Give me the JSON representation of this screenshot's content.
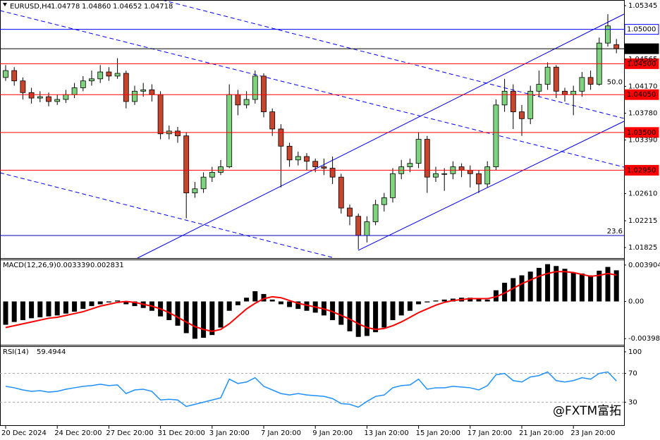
{
  "chart_data": [
    {
      "type": "candlestick",
      "title": "EURUSD,H4",
      "last_labels": [
        "1.04778",
        "1.04860",
        "1.04652",
        "1.04718"
      ],
      "up_color": "#7fd37f",
      "down_color": "#c8442c",
      "grid": false,
      "ylim": [
        1.01672,
        1.05427
      ],
      "yticks": [
        1.05345,
        1.04565,
        {
          "value": 1.0417,
          "label": "1.04170"
        },
        {
          "value": 1.0378,
          "label": "1.03780"
        },
        {
          "value": 1.0339,
          "label": "1.03390"
        },
        {
          "value": 1.0261,
          "label": "1.02610"
        },
        1.02215,
        1.01825
      ],
      "levels": [
        {
          "value": 1.05,
          "label": "1.05000",
          "color": "#0000ff",
          "box": "outline"
        },
        {
          "value": 1.04718,
          "label": "1.04718",
          "color": "#000000",
          "box": "filled"
        },
        {
          "value": 1.045,
          "label": "1.04500",
          "color": "#ff0000",
          "box": "filled"
        },
        {
          "value": 1.0405,
          "label": "1.04050",
          "color": "#ff0000",
          "box": "filled"
        },
        {
          "value": 1.035,
          "label": "1.03500",
          "color": "#ff0000",
          "box": "filled"
        },
        {
          "value": 1.0295,
          "label": "1.02950",
          "color": "#ff0000",
          "box": "filled"
        }
      ],
      "fib_levels": [
        {
          "value": 1.0417,
          "label": "50.0"
        },
        {
          "value": 1.02,
          "label": "23.6",
          "color": "#0000c0"
        }
      ],
      "categories": [
        "20 Dec 2024",
        null,
        null,
        null,
        null,
        null,
        "24 Dec 20:00",
        null,
        null,
        null,
        null,
        null,
        "27 Dec 20:00",
        null,
        null,
        null,
        null,
        null,
        "31 Dec 20:00",
        null,
        null,
        null,
        null,
        null,
        "3 Jan 20:00",
        null,
        null,
        null,
        null,
        null,
        "7 Jan 20:00",
        null,
        null,
        null,
        null,
        null,
        "9 Jan 20:00",
        null,
        null,
        null,
        null,
        null,
        "13 Jan 20:00",
        null,
        null,
        null,
        null,
        null,
        "15 Jan 20:00",
        null,
        null,
        null,
        null,
        null,
        "17 Jan 20:00",
        null,
        null,
        null,
        null,
        null,
        "21 Jan 20:00",
        null,
        null,
        null,
        null,
        null,
        "23 Jan 20:00",
        null,
        null,
        null,
        null,
        null
      ],
      "open": [
        1.043,
        1.044,
        1.0425,
        1.0408,
        1.04,
        1.0402,
        1.0395,
        1.0398,
        1.0405,
        1.0415,
        1.0425,
        1.0428,
        1.0438,
        1.0432,
        1.0436,
        1.0395,
        1.041,
        1.0412,
        1.0405,
        1.0348,
        1.0352,
        1.0345,
        1.0262,
        1.0268,
        1.0285,
        1.0292,
        1.03,
        1.0405,
        1.039,
        1.0398,
        1.0432,
        1.038,
        1.0355,
        1.033,
        1.031,
        1.0315,
        1.0308,
        1.03,
        1.0298,
        1.0285,
        1.024,
        1.0228,
        1.02,
        1.022,
        1.0245,
        1.0255,
        1.029,
        1.03,
        1.0305,
        1.034,
        1.0285,
        1.029,
        1.029,
        1.03,
        1.0295,
        1.029,
        1.0275,
        1.03,
        1.039,
        1.041,
        1.038,
        1.037,
        1.041,
        1.042,
        1.0445,
        1.041,
        1.0405,
        1.041,
        1.043,
        1.042,
        1.048,
        1.04778
      ],
      "high": [
        1.0448,
        1.0445,
        1.043,
        1.0415,
        1.041,
        1.0408,
        1.0405,
        1.0412,
        1.0422,
        1.0432,
        1.044,
        1.0448,
        1.0445,
        1.0458,
        1.044,
        1.0418,
        1.0422,
        1.042,
        1.041,
        1.036,
        1.0358,
        1.035,
        1.0278,
        1.0292,
        1.03,
        1.031,
        1.042,
        1.0412,
        1.041,
        1.044,
        1.0436,
        1.0385,
        1.0362,
        1.0335,
        1.0322,
        1.032,
        1.0312,
        1.0312,
        1.0315,
        1.029,
        1.0245,
        1.0232,
        1.0228,
        1.0252,
        1.0262,
        1.0298,
        1.031,
        1.0312,
        1.035,
        1.0345,
        1.03,
        1.0298,
        1.0308,
        1.0305,
        1.0302,
        1.0295,
        1.0308,
        1.0398,
        1.0428,
        1.042,
        1.039,
        1.0418,
        1.044,
        1.0452,
        1.0448,
        1.0415,
        1.0418,
        1.0438,
        1.044,
        1.0488,
        1.0522,
        1.0486
      ],
      "low": [
        1.0425,
        1.0418,
        1.0398,
        1.0392,
        1.0394,
        1.0388,
        1.039,
        1.0393,
        1.04,
        1.041,
        1.0418,
        1.0422,
        1.0425,
        1.0428,
        1.0385,
        1.039,
        1.0402,
        1.0395,
        1.034,
        1.034,
        1.0335,
        1.0225,
        1.0255,
        1.0262,
        1.0278,
        1.0288,
        1.0298,
        1.0375,
        1.0385,
        1.0392,
        1.0372,
        1.0345,
        1.027,
        1.03,
        1.0302,
        1.0295,
        1.0292,
        1.0288,
        1.0275,
        1.0232,
        1.0215,
        1.018,
        1.019,
        1.0215,
        1.0235,
        1.0248,
        1.0282,
        1.0292,
        1.0298,
        1.0262,
        1.0278,
        1.0265,
        1.0282,
        1.0285,
        1.027,
        1.0262,
        1.027,
        1.0295,
        1.038,
        1.0355,
        1.0345,
        1.0362,
        1.0402,
        1.0412,
        1.04,
        1.0395,
        1.0375,
        1.0402,
        1.0412,
        1.0418,
        1.0475,
        1.04652
      ],
      "close": [
        1.044,
        1.0425,
        1.0408,
        1.04,
        1.0402,
        1.0395,
        1.0398,
        1.0405,
        1.0415,
        1.0425,
        1.0428,
        1.0438,
        1.0432,
        1.0436,
        1.0395,
        1.041,
        1.0412,
        1.0405,
        1.0348,
        1.0352,
        1.0345,
        1.0262,
        1.0268,
        1.0285,
        1.0292,
        1.03,
        1.0405,
        1.039,
        1.0398,
        1.0432,
        1.038,
        1.0355,
        1.033,
        1.031,
        1.0315,
        1.0308,
        1.03,
        1.0298,
        1.0285,
        1.024,
        1.0228,
        1.02,
        1.022,
        1.0245,
        1.0255,
        1.029,
        1.03,
        1.0305,
        1.034,
        1.0285,
        1.029,
        1.029,
        1.03,
        1.0295,
        1.029,
        1.0275,
        1.03,
        1.039,
        1.041,
        1.038,
        1.037,
        1.041,
        1.042,
        1.0445,
        1.041,
        1.0405,
        1.041,
        1.043,
        1.042,
        1.048,
        1.0505,
        1.04718
      ],
      "watermark": "@FXTM富拓"
    },
    {
      "type": "combo",
      "title": "MACD(12,26,9)",
      "ylim": [
        -0.00465,
        0.004425
      ],
      "yticks": [
        0.003904,
        {
          "value": 0,
          "label": "0.00"
        },
        -0.003981
      ],
      "series": [
        {
          "kind": "bar",
          "color": "#000000",
          "values": [
            -0.0025,
            -0.0022,
            -0.002,
            -0.0018,
            -0.0017,
            -0.0016,
            -0.0015,
            -0.0013,
            -0.0011,
            -0.0008,
            -0.0005,
            -0.0003,
            -0.0001,
            0.0001,
            -0.0003,
            -0.0005,
            -0.0007,
            -0.001,
            -0.0016,
            -0.002,
            -0.0026,
            -0.0034,
            -0.004,
            -0.0039,
            -0.0036,
            -0.0028,
            -0.001,
            -0.0004,
            0.0004,
            0.0011,
            0.0008,
            0.0002,
            -0.0003,
            -0.0006,
            -0.0008,
            -0.001,
            -0.0012,
            -0.0015,
            -0.002,
            -0.0025,
            -0.0032,
            -0.0038,
            -0.0037,
            -0.0033,
            -0.0028,
            -0.002,
            -0.0015,
            -0.001,
            -0.0003,
            -0.0001,
            0.0001,
            0.0002,
            0.0003,
            0.0004,
            0.0004,
            0.0003,
            0.0002,
            0.0012,
            0.002,
            0.0025,
            0.0028,
            0.0032,
            0.0036,
            0.004,
            0.0038,
            0.0035,
            0.0031,
            0.003,
            0.0028,
            0.0033,
            0.0037,
            0.003339
          ]
        },
        {
          "kind": "line",
          "color": "#ff0000",
          "values": [
            -0.0028,
            -0.0026,
            -0.0024,
            -0.0022,
            -0.002,
            -0.0018,
            -0.0017,
            -0.0015,
            -0.0013,
            -0.0011,
            -0.0008,
            -0.0005,
            -0.0003,
            -0.0001,
            0.0,
            -0.0001,
            -0.0003,
            -0.0005,
            -0.0008,
            -0.0012,
            -0.0017,
            -0.0022,
            -0.0027,
            -0.003,
            -0.0032,
            -0.003,
            -0.0024,
            -0.0016,
            -0.0008,
            -0.0002,
            0.0003,
            0.0005,
            0.0004,
            0.0001,
            -0.0002,
            -0.0004,
            -0.0006,
            -0.0008,
            -0.0011,
            -0.0015,
            -0.0019,
            -0.0024,
            -0.0028,
            -0.003,
            -0.0029,
            -0.0026,
            -0.0022,
            -0.0017,
            -0.0012,
            -0.0008,
            -0.0004,
            -0.0001,
            0.0001,
            0.0002,
            0.0003,
            0.0003,
            0.0003,
            0.0005,
            0.0009,
            0.0014,
            0.0019,
            0.0023,
            0.0027,
            0.003,
            0.0032,
            0.0032,
            0.0031,
            0.0029,
            0.0027,
            0.0028,
            0.003,
            0.002831
          ]
        }
      ]
    },
    {
      "type": "line",
      "title": "RSI(14)",
      "color": "#1e90ff",
      "ylim": [
        -3,
        106.8
      ],
      "yticks": [
        100,
        70,
        30
      ],
      "levels": [
        70,
        30
      ],
      "values": [
        52,
        50,
        47,
        45,
        46,
        44,
        45,
        48,
        50,
        52,
        53,
        55,
        53,
        54,
        42,
        47,
        48,
        45,
        33,
        34,
        33,
        24,
        27,
        30,
        33,
        36,
        62,
        56,
        58,
        64,
        52,
        47,
        42,
        40,
        42,
        40,
        39,
        38,
        35,
        28,
        27,
        23,
        31,
        38,
        40,
        50,
        53,
        54,
        62,
        48,
        50,
        50,
        52,
        51,
        50,
        47,
        53,
        68,
        70,
        60,
        58,
        65,
        67,
        72,
        60,
        58,
        60,
        64,
        62,
        70,
        72,
        59.4944
      ]
    }
  ]
}
